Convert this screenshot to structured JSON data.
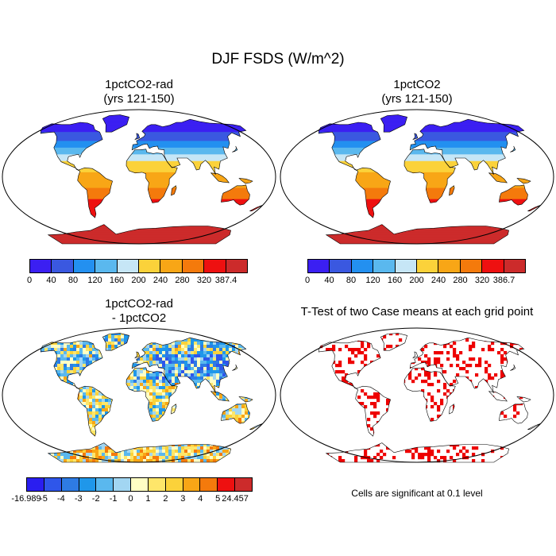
{
  "title": "DJF FSDS (W/m^2)",
  "panels": {
    "tl": {
      "title_line1": "1pctCO2-rad",
      "title_line2": "(yrs 121-150)"
    },
    "tr": {
      "title_line1": "1pctCO2",
      "title_line2": "(yrs 121-150)"
    },
    "bl": {
      "title_line1": "1pctCO2-rad",
      "title_line2": "- 1pctCO2"
    },
    "br": {
      "title_line1": "T-Test of two Case means at each grid point",
      "title_line2": ""
    }
  },
  "colorbars": {
    "tl": {
      "labels": [
        "0",
        "40",
        "80",
        "120",
        "160",
        "200",
        "240",
        "280",
        "320",
        "387.4"
      ],
      "colors": [
        "#3b1ff2",
        "#3a58e0",
        "#2390f0",
        "#5ab8ee",
        "#c6e6f6",
        "#fbd23a",
        "#f8a616",
        "#f47a0c",
        "#ee1010",
        "#cc2b2b"
      ]
    },
    "tr": {
      "labels": [
        "0",
        "40",
        "80",
        "120",
        "160",
        "200",
        "240",
        "280",
        "320",
        "386.7"
      ],
      "colors": [
        "#3b1ff2",
        "#3a58e0",
        "#2390f0",
        "#5ab8ee",
        "#c6e6f6",
        "#fbd23a",
        "#f8a616",
        "#f47a0c",
        "#ee1010",
        "#cc2b2b"
      ]
    },
    "bl": {
      "labels": [
        "-16.989",
        "-5",
        "-4",
        "-3",
        "-2",
        "-1",
        "0",
        "1",
        "2",
        "3",
        "4",
        "5",
        "24.457"
      ],
      "colors": [
        "#2a1ef0",
        "#2f56ea",
        "#2e7be4",
        "#1f97ea",
        "#5ab8ee",
        "#a2d6f2",
        "#ffffc4",
        "#fee66a",
        "#fbd23a",
        "#f8a616",
        "#f47a0c",
        "#ee1010",
        "#cc2b2b"
      ]
    }
  },
  "significance_note": "Cells are significant at 0.1 level"
}
